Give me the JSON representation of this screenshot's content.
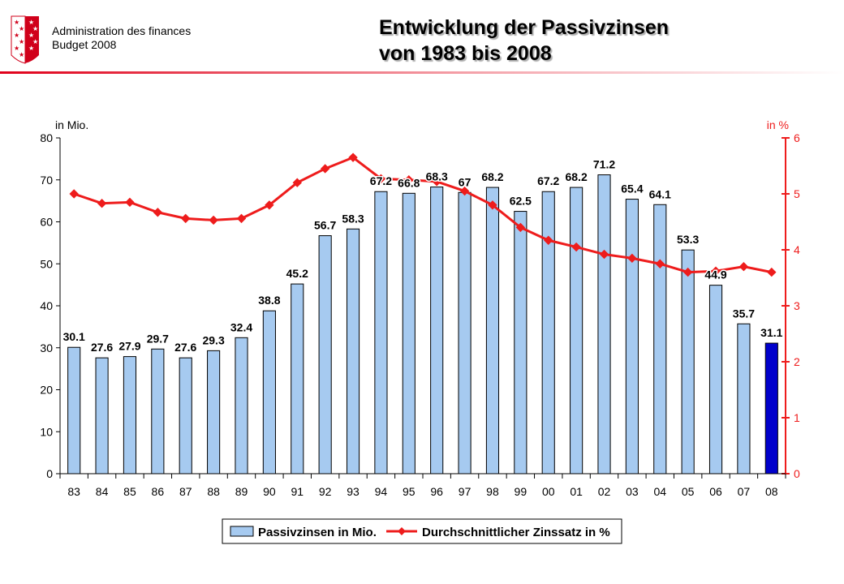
{
  "header": {
    "org_line1": "Administration des finances",
    "org_line2": "Budget 2008",
    "title_line1": "Entwicklung der Passivzinsen",
    "title_line2": "von 1983 bis 2008"
  },
  "colors": {
    "bar": "#a6caf0",
    "bar_highlight": "#0000cc",
    "line": "#ee1c1c",
    "accent": "#e0001a"
  },
  "chart_data": {
    "type": "bar",
    "categories": [
      "83",
      "84",
      "85",
      "86",
      "87",
      "88",
      "89",
      "90",
      "91",
      "92",
      "93",
      "94",
      "95",
      "96",
      "97",
      "98",
      "99",
      "00",
      "01",
      "02",
      "03",
      "04",
      "05",
      "06",
      "07",
      "08"
    ],
    "series": [
      {
        "name": "Passivzinsen in Mio.",
        "type": "bar",
        "axis": "left",
        "values": [
          30.1,
          27.6,
          27.9,
          29.7,
          27.6,
          29.3,
          32.4,
          38.8,
          45.2,
          56.7,
          58.3,
          67.2,
          66.8,
          68.3,
          67,
          68.2,
          62.5,
          67.2,
          68.2,
          71.2,
          65.4,
          64.1,
          53.3,
          44.9,
          35.7,
          31.1
        ],
        "labels": [
          "30.1",
          "27.6",
          "27.9",
          "29.7",
          "27.6",
          "29.3",
          "32.4",
          "38.8",
          "45.2",
          "56.7",
          "58.3",
          "67.2",
          "66.8",
          "68.3",
          "67",
          "68.2",
          "62.5",
          "67.2",
          "68.2",
          "71.2",
          "65.4",
          "64.1",
          "53.3",
          "44.9",
          "35.7",
          "31.1"
        ]
      },
      {
        "name": "Durchschnittlicher Zinssatz in %",
        "type": "line",
        "axis": "right",
        "values": [
          5.0,
          4.83,
          4.85,
          4.67,
          4.56,
          4.53,
          4.56,
          4.8,
          5.2,
          5.45,
          5.65,
          5.27,
          5.25,
          5.22,
          5.05,
          4.8,
          4.4,
          4.17,
          4.05,
          3.92,
          3.85,
          3.75,
          3.6,
          3.62,
          3.7,
          3.6
        ]
      }
    ],
    "y_left": {
      "label": "in Mio.",
      "min": 0,
      "max": 80,
      "ticks": [
        "0",
        "10",
        "20",
        "30",
        "40",
        "50",
        "60",
        "70",
        "80"
      ]
    },
    "y_right": {
      "label": "in %",
      "min": 0,
      "max": 6,
      "ticks": [
        "0",
        "1",
        "2",
        "3",
        "4",
        "5",
        "6"
      ]
    },
    "highlight_index": 25,
    "grid": false,
    "legend_position": "bottom-center"
  }
}
